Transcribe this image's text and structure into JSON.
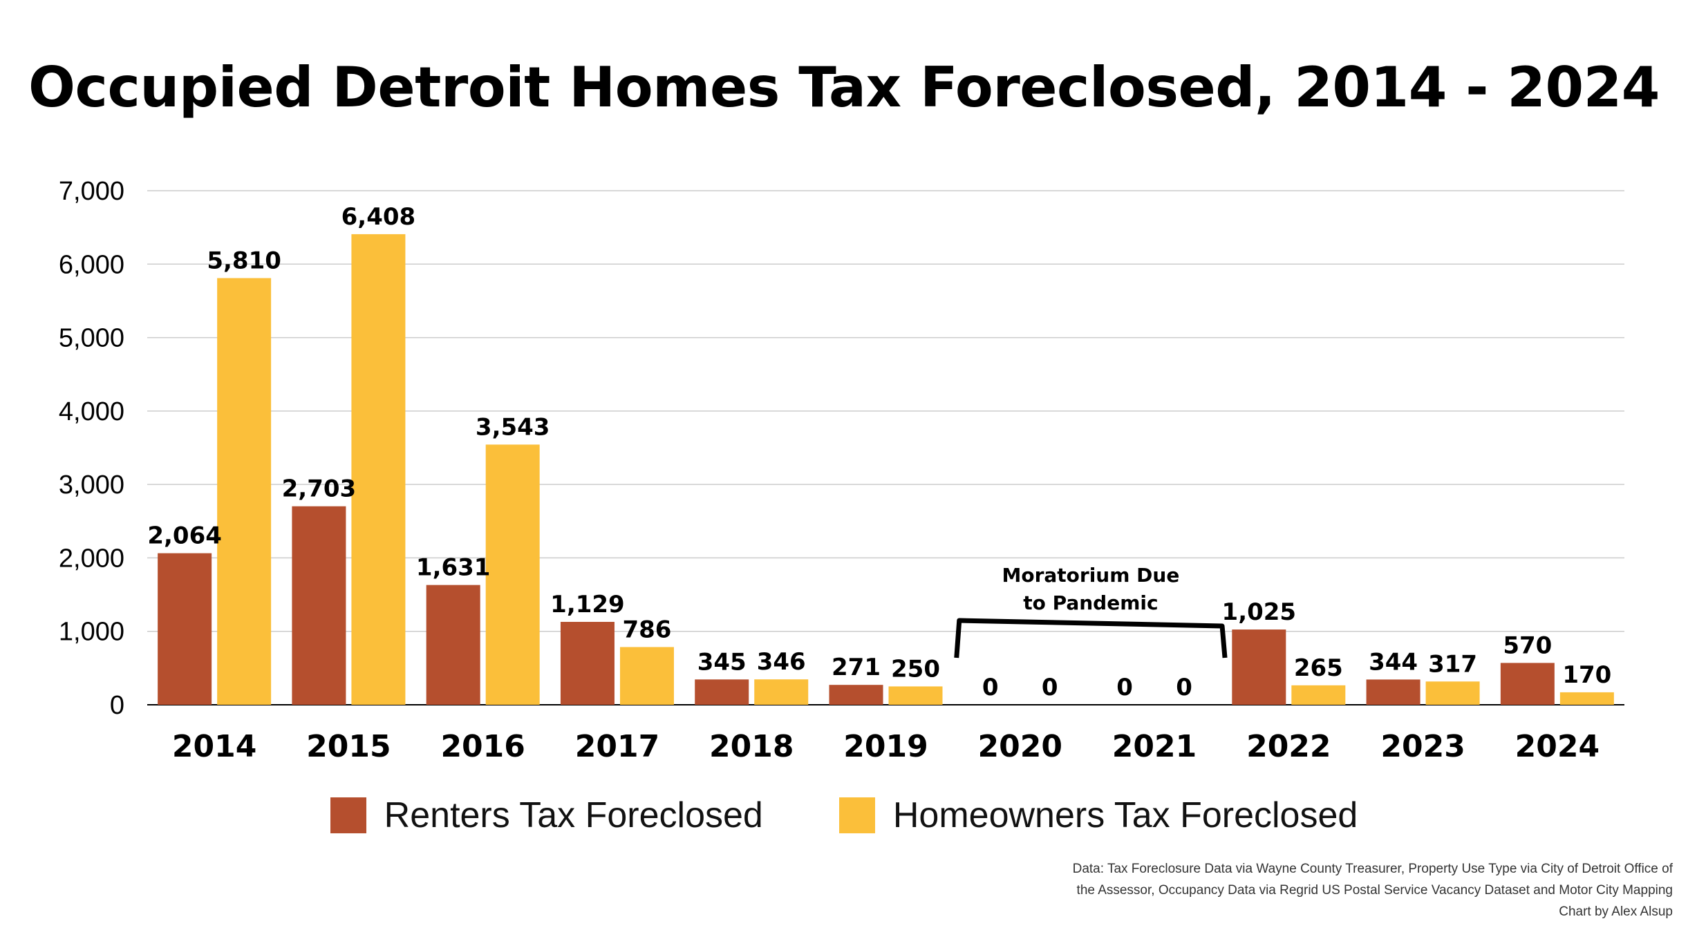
{
  "title": "Occupied Detroit Homes Tax Foreclosed, 2014 - 2024",
  "colors": {
    "renters": "#B54F2E",
    "homeowners": "#FBBF3A",
    "grid": "#CCCCCC",
    "axis": "#000000"
  },
  "chart_data": {
    "type": "bar",
    "title": "Occupied Detroit Homes Tax Foreclosed, 2014 - 2024",
    "xlabel": "",
    "ylabel": "",
    "categories": [
      "2014",
      "2015",
      "2016",
      "2017",
      "2018",
      "2019",
      "2020",
      "2021",
      "2022",
      "2023",
      "2024"
    ],
    "series": [
      {
        "name": "Renters Tax Foreclosed",
        "color": "#B54F2E",
        "values": [
          2064,
          2703,
          1631,
          1129,
          345,
          271,
          0,
          0,
          1025,
          344,
          570
        ],
        "labels": [
          "2,064",
          "2,703",
          "1,631",
          "1,129",
          "345",
          "271",
          "0",
          "0",
          "1,025",
          "344",
          "570"
        ]
      },
      {
        "name": "Homeowners Tax Foreclosed",
        "color": "#FBBF3A",
        "values": [
          5810,
          6408,
          3543,
          786,
          346,
          250,
          0,
          0,
          265,
          317,
          170
        ],
        "labels": [
          "5,810",
          "6,408",
          "3,543",
          "786",
          "346",
          "250",
          "0",
          "0",
          "265",
          "317",
          "170"
        ]
      }
    ],
    "ylim": [
      0,
      7000
    ],
    "yticks": [
      0,
      1000,
      2000,
      3000,
      4000,
      5000,
      6000,
      7000
    ],
    "ytick_labels": [
      "0",
      "1,000",
      "2,000",
      "3,000",
      "4,000",
      "5,000",
      "6,000",
      "7,000"
    ],
    "grid": true,
    "legend_position": "bottom",
    "annotation": {
      "lines": [
        "Moratorium Due",
        "to Pandemic"
      ],
      "spans": [
        "2020",
        "2021"
      ]
    }
  },
  "legend": {
    "renters_label": "Renters Tax Foreclosed",
    "homeowners_label": "Homeowners Tax Foreclosed"
  },
  "source": {
    "line1": "Data: Tax Foreclosure Data via Wayne County Treasurer, Property Use Type via City of Detroit Office of",
    "line2": "the Assessor, Occupancy Data via Regrid US Postal Service Vacancy Dataset and Motor City Mapping",
    "line3": "Chart by Alex Alsup"
  }
}
